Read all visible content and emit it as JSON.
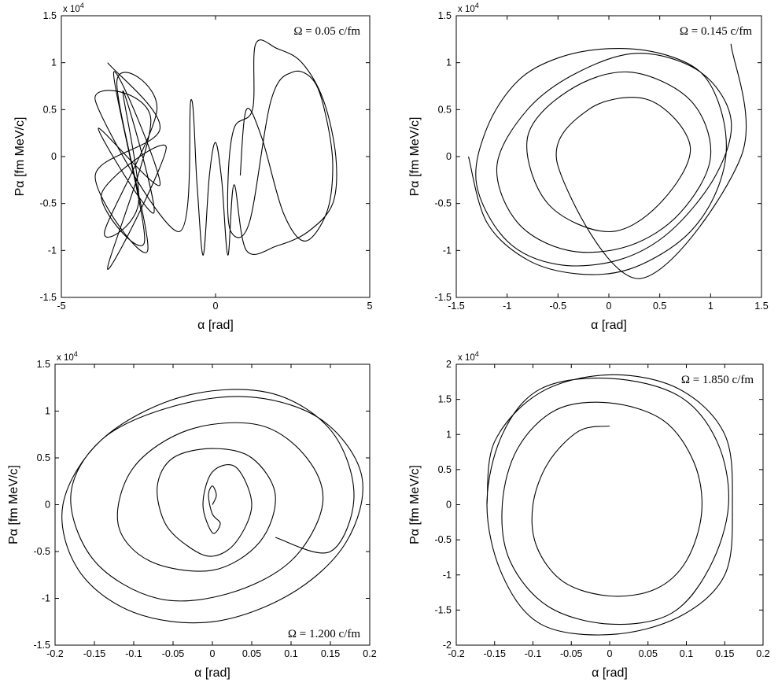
{
  "chart_data": [
    {
      "type": "line",
      "panel": "top-left",
      "annotation": "Ω = 0.05 c/fm",
      "annotation_position": "top-right",
      "xlabel": "α [rad]",
      "ylabel": "Pα [fm MeV/c]",
      "y_multiplier": "x 10",
      "y_multiplier_exp": "4",
      "xlim": [
        -5,
        5
      ],
      "ylim": [
        -1.5,
        1.5
      ],
      "xticks": [
        -5,
        0,
        5
      ],
      "xtick_labels": [
        "-5",
        "0",
        "5"
      ],
      "yticks": [
        -1.5,
        -1,
        -0.5,
        0,
        0.5,
        1,
        1.5
      ],
      "ytick_labels": [
        "-1.5",
        "-1",
        "-0.5",
        "0",
        "0.5",
        "1",
        "1.5"
      ],
      "grid": false,
      "series": [
        {
          "values_note": "",
          "x": [
            -3.5,
            -1.8,
            -3.9,
            -2.2,
            -3.2,
            -1.9,
            -3.6,
            -2.5,
            -3.0,
            -2.0,
            -3.8,
            -1.8,
            -3.3,
            -2.3,
            -3.7,
            -1.6,
            -3.5,
            -2.1,
            -3.9,
            -1.2,
            -0.8,
            -0.6,
            -0.4,
            -0.2,
            0.0,
            0.2,
            0.4,
            0.6,
            1.0,
            2.0,
            3.0,
            3.8,
            3.9,
            3.5,
            2.8,
            2.0,
            1.3,
            1.2,
            0.6,
            0.4,
            0.5,
            1.1,
            1.8,
            2.5,
            3.2,
            3.6,
            3.8,
            3.6,
            2.9,
            2.2,
            1.5,
            1.0,
            0.8
          ],
          "y": [
            1.0,
            0.3,
            -0.2,
            -1.0,
            0.8,
            0.5,
            -0.8,
            -0.5,
            0.7,
            -0.6,
            0.3,
            -0.3,
            0.9,
            -0.9,
            -0.4,
            0.1,
            -1.2,
            0.4,
            0.6,
            -0.8,
            0.6,
            -0.3,
            -1.05,
            -0.2,
            0.15,
            -0.25,
            -1.05,
            -0.3,
            -1.0,
            -0.95,
            -0.8,
            -0.5,
            0.0,
            0.6,
            1.0,
            1.15,
            1.2,
            0.5,
            0.3,
            -0.3,
            -0.8,
            -0.7,
            0.6,
            0.9,
            0.8,
            0.4,
            -0.1,
            -0.6,
            -0.9,
            -0.6,
            0.2,
            0.5,
            -0.2
          ]
        }
      ]
    },
    {
      "type": "line",
      "panel": "top-right",
      "annotation": "Ω = 0.145 c/fm",
      "annotation_position": "top-right",
      "xlabel": "α [rad]",
      "ylabel": "Pα [fm MeV/c]",
      "y_multiplier": "x 10",
      "y_multiplier_exp": "4",
      "xlim": [
        -1.5,
        1.5
      ],
      "ylim": [
        -1.5,
        1.5
      ],
      "xticks": [
        -1.5,
        -1,
        -0.5,
        0,
        0.5,
        1,
        1.5
      ],
      "xtick_labels": [
        "-1.5",
        "-1",
        "-0.5",
        "0",
        "0.5",
        "1",
        "1.5"
      ],
      "yticks": [
        -1.5,
        -1,
        -0.5,
        0,
        0.5,
        1,
        1.5
      ],
      "ytick_labels": [
        "-1.5",
        "-1",
        "-0.5",
        "0",
        "0.5",
        "1",
        "1.5"
      ],
      "grid": false,
      "series": [
        {
          "x": [
            -1.38,
            -1.2,
            -0.8,
            -0.3,
            0.2,
            0.7,
            1.0,
            1.15,
            1.1,
            0.9,
            0.5,
            0.0,
            -0.5,
            -0.9,
            -1.2,
            -1.3,
            -1.0,
            -0.5,
            0.1,
            0.6,
            1.05,
            1.2,
            0.9,
            0.3,
            -0.3,
            -0.8,
            -1.1,
            -0.9,
            -0.4,
            0.2,
            0.7,
            1.0,
            0.8,
            0.2,
            -0.4,
            -0.8,
            -0.6,
            0.0,
            0.5,
            0.8,
            0.4,
            -0.2,
            -0.5,
            0.3,
            1.3,
            1.2
          ],
          "y": [
            0.0,
            -0.7,
            -1.1,
            -1.25,
            -1.2,
            -0.9,
            -0.5,
            0.0,
            0.5,
            0.9,
            1.1,
            1.15,
            1.05,
            0.8,
            0.3,
            -0.3,
            -0.9,
            -1.15,
            -1.1,
            -0.8,
            -0.2,
            0.4,
            0.9,
            1.1,
            0.9,
            0.5,
            -0.1,
            -0.7,
            -1.0,
            -0.95,
            -0.6,
            0.0,
            0.6,
            0.9,
            0.7,
            0.2,
            -0.5,
            -0.8,
            -0.5,
            0.1,
            0.6,
            0.5,
            -0.1,
            -1.3,
            0.0,
            1.2
          ]
        }
      ]
    },
    {
      "type": "line",
      "panel": "bottom-left",
      "annotation": "Ω = 1.200  c/fm",
      "annotation_position": "bottom-right",
      "xlabel": "α [rad]",
      "ylabel": "Pα [fm MeV/c]",
      "y_multiplier": "x 10",
      "y_multiplier_exp": "4",
      "xlim": [
        -0.2,
        0.2
      ],
      "ylim": [
        -1.5,
        1.5
      ],
      "xticks": [
        -0.2,
        -0.15,
        -0.1,
        -0.05,
        0,
        0.05,
        0.1,
        0.15,
        0.2
      ],
      "xtick_labels": [
        "-0.2",
        "-0.15",
        "-0.1",
        "-0.05",
        "0",
        "0.05",
        "0.1",
        "0.15",
        "0.2"
      ],
      "yticks": [
        -1.5,
        -1,
        -0.5,
        0,
        0.5,
        1,
        1.5
      ],
      "ytick_labels": [
        "-1.5",
        "-1",
        "-0.5",
        "0",
        "0.5",
        "1",
        "1.5"
      ],
      "grid": false,
      "series": [
        {
          "x": [
            0.0,
            0.005,
            0.0,
            -0.005,
            0.0,
            0.01,
            0.0,
            -0.012,
            0.0,
            0.03,
            0.05,
            0.03,
            0.0,
            -0.03,
            -0.06,
            -0.07,
            -0.05,
            0.0,
            0.05,
            0.08,
            0.06,
            0.0,
            -0.08,
            -0.12,
            -0.1,
            -0.03,
            0.06,
            0.12,
            0.14,
            0.1,
            0.02,
            -0.07,
            -0.15,
            -0.18,
            -0.14,
            -0.05,
            0.05,
            0.14,
            0.19,
            0.17,
            0.1,
            0.0,
            -0.1,
            -0.17,
            -0.19,
            -0.14,
            -0.04,
            0.07,
            0.15,
            0.18,
            0.15,
            0.08
          ],
          "y": [
            0.0,
            0.1,
            0.2,
            0.1,
            -0.1,
            -0.2,
            -0.3,
            0.0,
            0.35,
            0.4,
            0.0,
            -0.4,
            -0.55,
            -0.45,
            -0.2,
            0.2,
            0.5,
            0.6,
            0.5,
            0.1,
            -0.4,
            -0.7,
            -0.6,
            -0.2,
            0.4,
            0.8,
            0.85,
            0.5,
            0.0,
            -0.6,
            -0.95,
            -1.0,
            -0.6,
            0.1,
            0.7,
            1.05,
            1.15,
            0.9,
            0.3,
            -0.4,
            -0.95,
            -1.25,
            -1.15,
            -0.7,
            0.0,
            0.7,
            1.15,
            1.2,
            0.8,
            0.1,
            -0.5,
            -0.35
          ]
        }
      ]
    },
    {
      "type": "line",
      "panel": "bottom-right",
      "annotation": "Ω = 1.850 c/fm",
      "annotation_position": "top-right",
      "xlabel": "α [rad]",
      "ylabel": "Pα [fm MeV/c]",
      "y_multiplier": "x 10",
      "y_multiplier_exp": "4",
      "xlim": [
        -0.2,
        0.2
      ],
      "ylim": [
        -2,
        2
      ],
      "xticks": [
        -0.2,
        -0.15,
        -0.1,
        -0.05,
        0,
        0.05,
        0.1,
        0.15,
        0.2
      ],
      "xtick_labels": [
        "-0.2",
        "-0.15",
        "-0.1",
        "-0.05",
        "0",
        "0.05",
        "0.1",
        "0.15",
        "0.2"
      ],
      "yticks": [
        -2,
        -1.5,
        -1,
        -0.5,
        0,
        0.5,
        1,
        1.5,
        2
      ],
      "ytick_labels": [
        "-2",
        "-1.5",
        "-1",
        "-0.5",
        "0",
        "0.5",
        "1",
        "1.5",
        "2"
      ],
      "grid": false,
      "series": [
        {
          "x": [
            0.0,
            -0.04,
            -0.08,
            -0.1,
            -0.095,
            -0.06,
            0.0,
            0.06,
            0.1,
            0.12,
            0.11,
            0.07,
            0.0,
            -0.07,
            -0.12,
            -0.14,
            -0.13,
            -0.08,
            0.0,
            0.08,
            0.13,
            0.155,
            0.14,
            0.09,
            0.0,
            -0.09,
            -0.14,
            -0.16,
            -0.14,
            -0.09,
            0.0,
            0.09,
            0.15,
            0.16,
            0.15,
            0.09,
            0.0,
            -0.09,
            -0.15,
            -0.16
          ],
          "y": [
            1.12,
            1.05,
            0.6,
            0.0,
            -0.6,
            -1.1,
            -1.3,
            -1.2,
            -0.8,
            -0.1,
            0.6,
            1.2,
            1.45,
            1.35,
            0.8,
            0.0,
            -0.8,
            -1.45,
            -1.7,
            -1.55,
            -0.9,
            0.0,
            0.9,
            1.55,
            1.8,
            1.65,
            1.0,
            0.0,
            -1.0,
            -1.7,
            -1.85,
            -1.6,
            -1.0,
            0.0,
            1.0,
            1.65,
            1.85,
            1.6,
            0.9,
            0.0
          ]
        }
      ]
    }
  ]
}
